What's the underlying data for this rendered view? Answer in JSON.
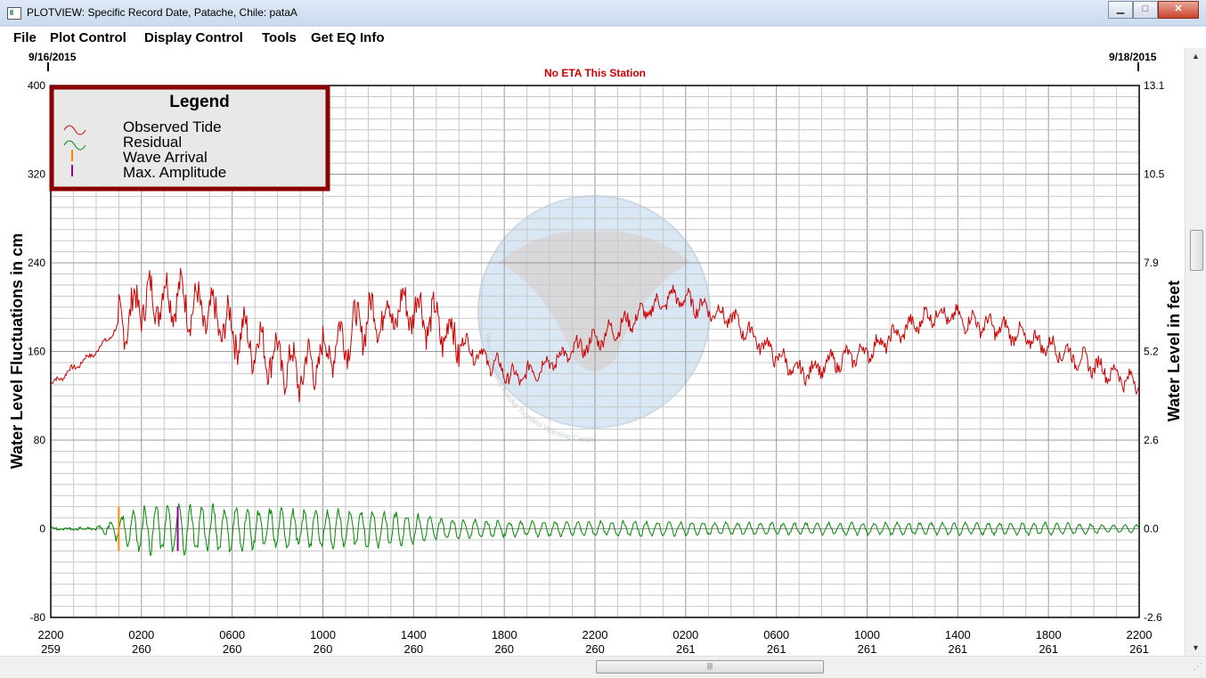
{
  "window": {
    "title": "PLOTVIEW: Specific Record Date, Patache, Chile: pataA",
    "minimize": "▁",
    "maximize": "□",
    "close": "✕"
  },
  "menu": [
    "File",
    "Plot Control",
    "Display Control",
    "Tools",
    "Get EQ Info"
  ],
  "plot": {
    "start_date": "9/16/2015",
    "end_date": "9/18/2015",
    "notice": "No ETA This Station",
    "left_axis_label": "Water Level Fluctuations in cm",
    "right_axis_label": "Water Level in feet",
    "watermark_text": "West Coast and Alaska Tsunami Warning Center"
  },
  "legend": {
    "title": "Legend",
    "items": [
      {
        "label": "Observed Tide",
        "icon": "red-wave-icon",
        "color": "#cc0000"
      },
      {
        "label": "Residual",
        "icon": "green-wave-icon",
        "color": "#008800"
      },
      {
        "label": "Wave Arrival",
        "icon": "orange-bar-icon",
        "color": "#ff8800"
      },
      {
        "label": "Max. Amplitude",
        "icon": "purple-bar-icon",
        "color": "#990099"
      }
    ]
  },
  "chart_data": {
    "type": "line",
    "x_tick_labels_time": [
      "2200",
      "0200",
      "0600",
      "1000",
      "1400",
      "1800",
      "2200",
      "0200",
      "0600",
      "1000",
      "1400",
      "1800",
      "2200"
    ],
    "x_tick_labels_day": [
      "259",
      "260",
      "260",
      "260",
      "260",
      "260",
      "260",
      "261",
      "261",
      "261",
      "261",
      "261",
      "261"
    ],
    "left_ylim": [
      -80,
      400
    ],
    "left_yticks": [
      "400",
      "320",
      "240",
      "160",
      "80",
      "0",
      "-80"
    ],
    "right_yticks": [
      "13.1",
      "10.5",
      "7.9",
      "5.2",
      "2.6",
      "0.0",
      "-2.6"
    ],
    "x_hours": [
      0,
      2,
      4,
      5.5,
      8,
      11,
      14,
      16,
      18,
      20.5,
      24,
      27.5,
      30,
      33,
      36,
      39,
      42,
      44,
      48
    ],
    "series": [
      {
        "name": "Observed Tide",
        "color": "#cc0000",
        "y": [
          130,
          160,
          205,
          210,
          180,
          140,
          190,
          200,
          170,
          135,
          170,
          210,
          190,
          140,
          160,
          195,
          180,
          165,
          130
        ]
      },
      {
        "name": "Residual",
        "color": "#008800",
        "y": [
          0,
          0,
          20,
          20,
          18,
          15,
          16,
          12,
          8,
          6,
          6,
          6,
          5,
          5,
          5,
          5,
          5,
          5,
          3
        ],
        "note_kind": "amplitude envelope"
      }
    ],
    "markers": [
      {
        "name": "Wave Arrival",
        "hour": 3.0,
        "color": "#ff8800"
      },
      {
        "name": "Max. Amplitude",
        "hour": 5.6,
        "color": "#990099"
      }
    ],
    "grid": true
  }
}
